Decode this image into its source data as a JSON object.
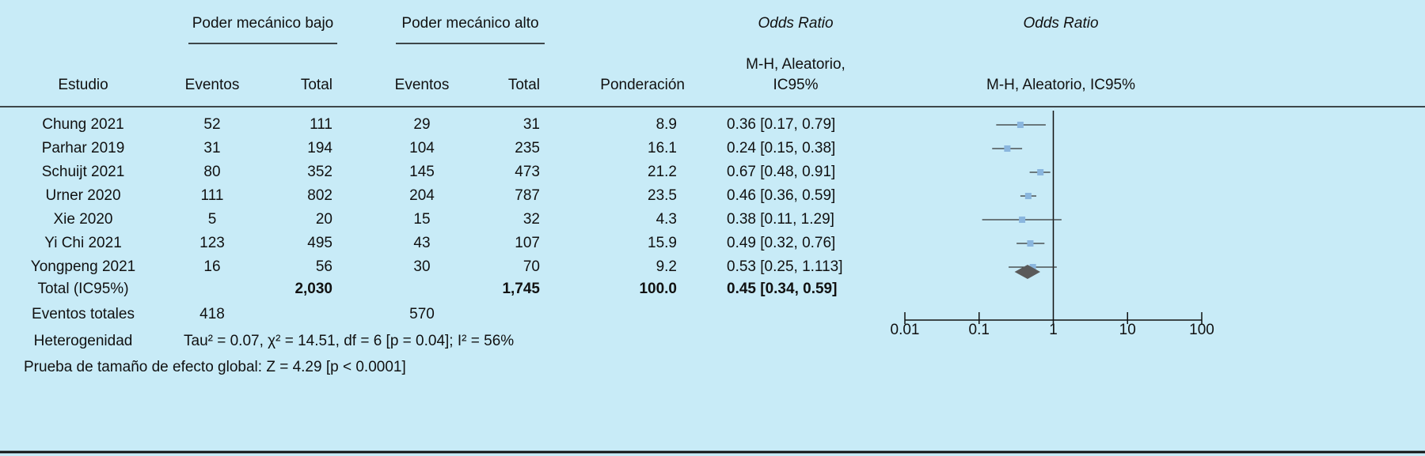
{
  "header": {
    "group1": "Poder mecánico bajo",
    "group2": "Poder mecánico alto",
    "or_title": "Odds Ratio",
    "or_method": [
      "M-H, Aleatorio,",
      "IC95%"
    ],
    "plot_title": "Odds Ratio",
    "plot_method": "M-H, Aleatorio, IC95%"
  },
  "columns": [
    "Estudio",
    "Eventos",
    "Total",
    "Eventos",
    "Total",
    "Ponderación"
  ],
  "table": {
    "rows": [
      [
        "Chung 2021",
        "52",
        "111",
        "29",
        "31",
        "8.9",
        "0.36 [0.17, 0.79]"
      ],
      [
        "Parhar 2019",
        "31",
        "194",
        "104",
        "235",
        "16.1",
        "0.24 [0.15, 0.38]"
      ],
      [
        "Schuijt 2021",
        "80",
        "352",
        "145",
        "473",
        "21.2",
        "0.67 [0.48, 0.91]"
      ],
      [
        "Urner 2020",
        "111",
        "802",
        "204",
        "787",
        "23.5",
        "0.46 [0.36, 0.59]"
      ],
      [
        "Xie 2020",
        "5",
        "20",
        "15",
        "32",
        "4.3",
        "0.38 [0.11, 1.29]"
      ],
      [
        "Yi Chi 2021",
        "123",
        "495",
        "43",
        "107",
        "15.9",
        "0.49 [0.32, 0.76]"
      ],
      [
        "Yongpeng 2021",
        "16",
        "56",
        "30",
        "70",
        "9.2",
        "0.53 [0.25, 1.113]"
      ]
    ],
    "total": [
      "Total (IC95%)",
      "2,030",
      "1,745",
      "100.0",
      "0.45 [0.34, 0.59]"
    ],
    "events_total": [
      "Eventos totales",
      "418",
      "570"
    ],
    "heterogeneity": [
      "Heterogenidad",
      "Tau² = 0.07, χ² = 14.51, df = 6 [p = 0.04]; I² = 56%"
    ],
    "overall": "Prueba de tamaño de efecto global: Z = 4.29 [p < 0.0001]"
  },
  "chart_data": {
    "type": "forest",
    "x_scale": "log",
    "xlim": [
      0.01,
      100
    ],
    "xticks": [
      0.01,
      0.1,
      1,
      10,
      100
    ],
    "or": [
      0.36,
      0.24,
      0.67,
      0.46,
      0.38,
      0.49,
      0.53
    ],
    "ci_low": [
      0.17,
      0.15,
      0.48,
      0.36,
      0.11,
      0.32,
      0.25
    ],
    "ci_high": [
      0.79,
      0.38,
      0.91,
      0.59,
      1.29,
      0.76,
      1.113
    ],
    "color": "#8ab6de",
    "total": {
      "or": 0.45,
      "low": 0.34,
      "high": 0.59,
      "color": "#5a5a5a"
    }
  }
}
